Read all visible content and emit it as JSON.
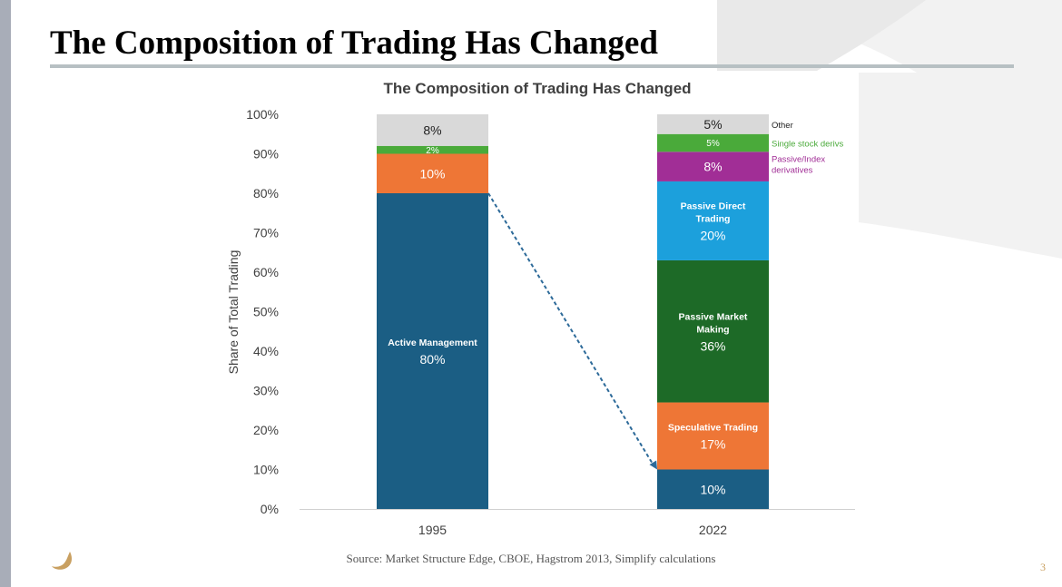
{
  "slide": {
    "title": "The Composition of Trading Has Changed",
    "source": "Source: Market Structure Edge, CBOE, Hagstrom 2013, Simplify calculations",
    "page_number": "3"
  },
  "colors": {
    "active": "#1b5e84",
    "speculative": "#ee7636",
    "passive_market_making": "#1d6a27",
    "passive_direct": "#1ca0dc",
    "passive_index": "#a12e96",
    "single_stock": "#4aaa3a",
    "other": "#d9d9d9",
    "arrow": "#2d6a99",
    "slide_accent": "#c9a061"
  },
  "chart_data": {
    "type": "bar",
    "stacked": true,
    "title": "The Composition of Trading Has Changed",
    "xlabel": "",
    "ylabel": "Share of Total Trading",
    "ylim": [
      0,
      100
    ],
    "yticks": [
      "0%",
      "10%",
      "20%",
      "30%",
      "40%",
      "50%",
      "60%",
      "70%",
      "80%",
      "90%",
      "100%"
    ],
    "categories": [
      "1995",
      "2022"
    ],
    "bars": [
      {
        "category": "1995",
        "segments": [
          {
            "key": "active",
            "name": "Active Management",
            "value": 80,
            "label": "80%",
            "color": "#1b5e84",
            "label_color": "#ffffff",
            "value_size": 14
          },
          {
            "key": "speculative",
            "name": "",
            "value": 10,
            "label": "10%",
            "color": "#ee7636",
            "label_color": "#ffffff",
            "value_size": 14
          },
          {
            "key": "single_stock",
            "name": "",
            "value": 2,
            "label": "2%",
            "color": "#4aaa3a",
            "label_color": "#ffffff",
            "value_size": 10
          },
          {
            "key": "other",
            "name": "",
            "value": 8,
            "label": "8%",
            "color": "#d9d9d9",
            "label_color": "#222222",
            "value_size": 14
          }
        ]
      },
      {
        "category": "2022",
        "segments": [
          {
            "key": "active",
            "name": "",
            "value": 10,
            "label": "10%",
            "color": "#1b5e84",
            "label_color": "#ffffff",
            "value_size": 14
          },
          {
            "key": "speculative",
            "name": "Speculative Trading",
            "value": 17,
            "label": "17%",
            "color": "#ee7636",
            "label_color": "#ffffff",
            "value_size": 14
          },
          {
            "key": "passive_market_making",
            "name": "Passive Market Making",
            "value": 36,
            "label": "36%",
            "color": "#1d6a27",
            "label_color": "#ffffff",
            "value_size": 14
          },
          {
            "key": "passive_direct",
            "name": "Passive Direct Trading",
            "value": 20,
            "label": "20%",
            "color": "#1ca0dc",
            "label_color": "#ffffff",
            "value_size": 14
          },
          {
            "key": "passive_index",
            "name": "",
            "value": 7.5,
            "label": "8%",
            "color": "#a12e96",
            "label_color": "#ffffff",
            "value_size": 14
          },
          {
            "key": "single_stock",
            "name": "",
            "value": 4.5,
            "label": "5%",
            "color": "#4aaa3a",
            "label_color": "#ffffff",
            "value_size": 10
          },
          {
            "key": "other",
            "name": "",
            "value": 5,
            "label": "5%",
            "color": "#d9d9d9",
            "label_color": "#222222",
            "value_size": 14
          }
        ]
      }
    ],
    "legend": [
      {
        "key": "other",
        "lines": [
          "Other"
        ],
        "color": "#222222"
      },
      {
        "key": "single_stock",
        "lines": [
          "Single stock derivs"
        ],
        "color": "#4aaa3a"
      },
      {
        "key": "passive_index",
        "lines": [
          "Passive/Index",
          "derivatives"
        ],
        "color": "#a12e96"
      }
    ],
    "annotation": {
      "type": "dashed-arrow",
      "from": {
        "category": "1995",
        "value": 80
      },
      "to": {
        "category": "2022",
        "value": 10
      }
    }
  }
}
